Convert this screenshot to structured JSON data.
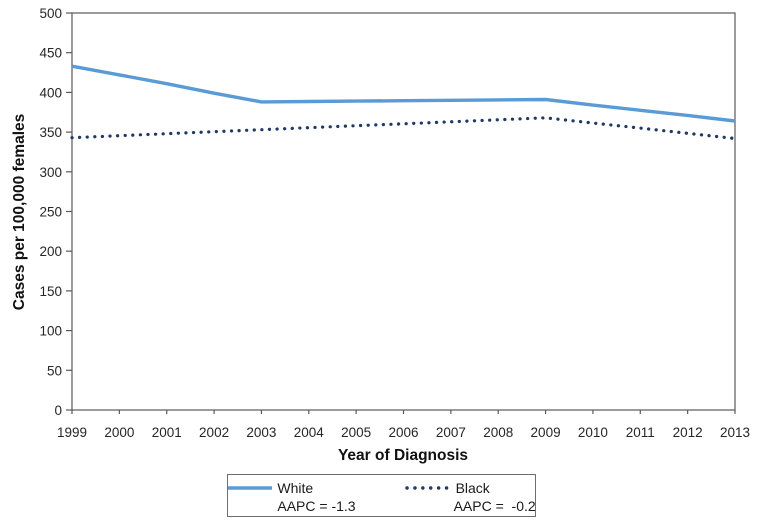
{
  "chart_data": {
    "type": "line",
    "title": "",
    "xlabel": "Year of Diagnosis",
    "ylabel": "Cases per 100,000 females",
    "x": [
      1999,
      2000,
      2001,
      2002,
      2003,
      2004,
      2005,
      2006,
      2007,
      2008,
      2009,
      2010,
      2011,
      2012,
      2013
    ],
    "ylim": [
      0,
      500
    ],
    "yticks": [
      0,
      50,
      100,
      150,
      200,
      250,
      300,
      350,
      400,
      450,
      500
    ],
    "grid": false,
    "legend_position": "bottom",
    "series": [
      {
        "name": "White",
        "aapc": "AAPC = -1.3",
        "color": "#5B9BD5",
        "style": "solid",
        "values": [
          433,
          422,
          411,
          399,
          388,
          388.5,
          389,
          389.5,
          390,
          390.5,
          391,
          384,
          377.5,
          371,
          364
        ]
      },
      {
        "name": "Black",
        "aapc": "AAPC =  -0.2",
        "color": "#1F3864",
        "style": "dotted",
        "values": [
          343,
          345.5,
          348,
          350.5,
          353,
          355.5,
          358,
          360.5,
          363,
          365.5,
          368,
          361.5,
          355,
          348.5,
          342
        ]
      }
    ]
  },
  "legend": {
    "entries": [
      {
        "label": "White",
        "sub": "AAPC = -1.3"
      },
      {
        "label": "Black",
        "sub": "AAPC =  -0.2"
      }
    ]
  },
  "colors": {
    "axis": "#595959",
    "tick_text": "#262626",
    "white_series": "#5B9BD5",
    "black_series": "#1F3864"
  }
}
